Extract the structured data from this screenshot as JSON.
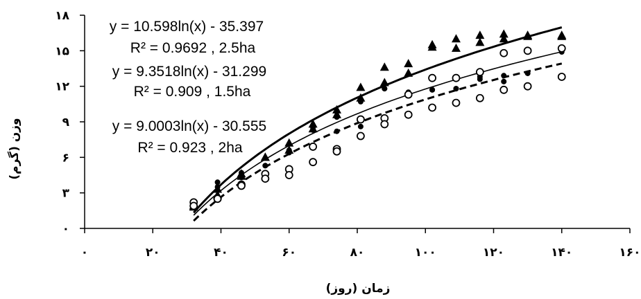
{
  "chart_data": {
    "type": "scatter",
    "xlabel": "زمان (روز)",
    "ylabel": "وزن (گرم)",
    "xlim": [
      0,
      160
    ],
    "ylim": [
      0,
      18
    ],
    "x_ticks": [
      0,
      20,
      40,
      60,
      80,
      100,
      120,
      140,
      160
    ],
    "x_tick_labels": [
      "۰",
      "۲۰",
      "۴۰",
      "۶۰",
      "۸۰",
      "۱۰۰",
      "۱۲۰",
      "۱۴۰",
      "۱۶۰"
    ],
    "y_ticks": [
      0,
      3,
      6,
      9,
      12,
      15,
      18
    ],
    "y_tick_labels": [
      "۰",
      "۳",
      "۶",
      "۹",
      "۱۲",
      "۱۵",
      "۱۸"
    ],
    "grid": false,
    "series": [
      {
        "marker": "triangle",
        "line": "thick-solid",
        "color": "#000000",
        "x": [
          32,
          39,
          46,
          53,
          60,
          67,
          74,
          81,
          88,
          95,
          102,
          109,
          116,
          123,
          130,
          140
        ],
        "y": [
          1.9,
          2.8,
          4.6,
          6.0,
          7.2,
          8.8,
          10.0,
          11.9,
          13.6,
          13.9,
          15.5,
          16.0,
          16.3,
          16.4,
          16.3,
          16.3
        ],
        "y_second": [
          1.8,
          3.3,
          4.4,
          6.0,
          6.6,
          8.4,
          9.6,
          11.0,
          12.3,
          13.1,
          15.3,
          15.2,
          15.7,
          16.0,
          16.2,
          16.2
        ],
        "fit": {
          "a": 10.598,
          "b": -35.397
        },
        "equation": "y = 10.598ln(x) - 35.397",
        "r2_label": "R² = 0.9692 , 2.5ha"
      },
      {
        "marker": "filled-circle",
        "line": "thin-solid",
        "color": "#000000",
        "x": [
          32,
          39,
          46,
          53,
          60,
          67,
          74,
          81,
          88,
          95,
          102,
          109,
          116,
          123,
          130,
          140
        ],
        "y": [
          2.3,
          3.9,
          4.7,
          5.3,
          6.6,
          8.3,
          9.4,
          10.7,
          11.8,
          11.5,
          11.7,
          11.8,
          12.8,
          12.9,
          13.1,
          15.2
        ],
        "y_second": [
          1.9,
          3.5,
          4.3,
          5.3,
          6.4,
          8.5,
          8.2,
          8.6,
          11.8,
          11.4,
          11.7,
          11.8,
          12.6,
          12.4,
          13.1,
          14.9
        ],
        "fit": {
          "a": 9.3518,
          "b": -31.299
        },
        "equation": "y = 9.3518ln(x) - 31.299",
        "r2_label": "R² = 0.909 , 1.5ha"
      },
      {
        "marker": "open-circle",
        "line": "thick-dashed",
        "color": "#000000",
        "x": [
          32,
          39,
          46,
          53,
          60,
          67,
          74,
          81,
          88,
          95,
          102,
          109,
          116,
          123,
          130,
          140
        ],
        "y": [
          2.2,
          2.5,
          3.7,
          4.6,
          5.0,
          6.9,
          6.7,
          9.2,
          9.3,
          11.3,
          12.7,
          12.7,
          13.2,
          14.8,
          15.0,
          15.2
        ],
        "y_second": [
          1.9,
          2.5,
          3.6,
          4.2,
          4.5,
          5.6,
          6.5,
          7.8,
          8.8,
          9.6,
          10.2,
          10.6,
          11.0,
          11.7,
          12.0,
          12.8
        ],
        "fit": {
          "a": 9.0003,
          "b": -30.555
        },
        "equation": "y = 9.0003ln(x) - 30.555",
        "r2_label": "R² = 0.923 , 2ha"
      }
    ]
  }
}
